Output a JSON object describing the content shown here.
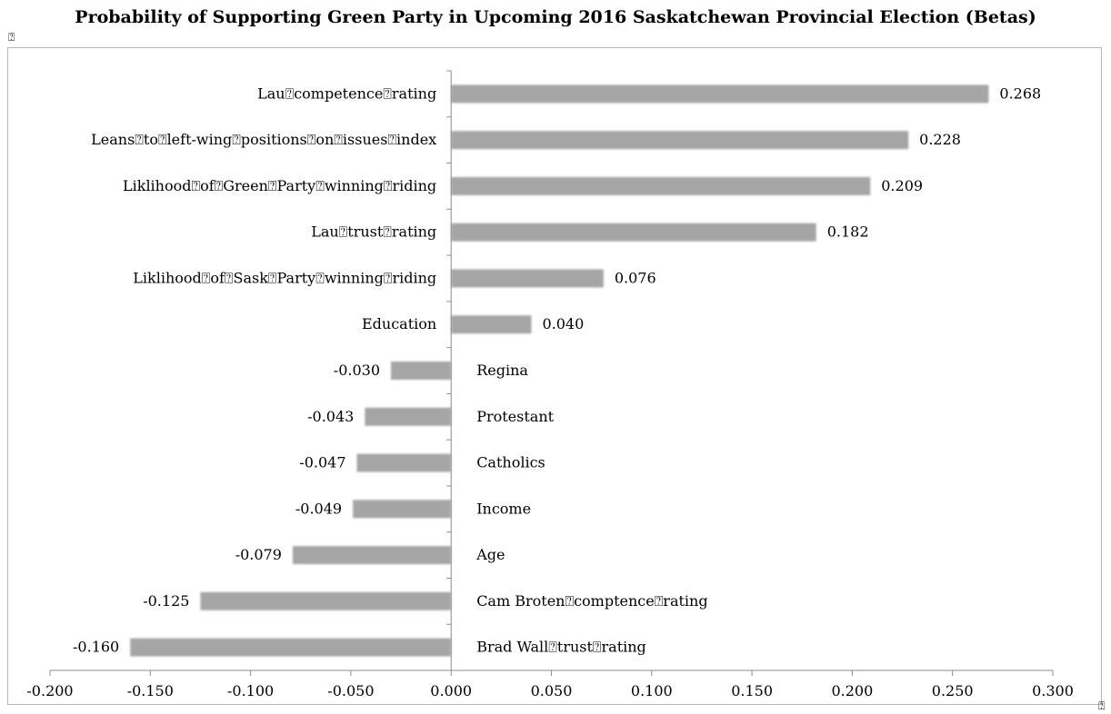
{
  "page": {
    "title_glyph": "⍰",
    "corner_glyph": "⍰"
  },
  "chart_data": {
    "type": "bar",
    "orientation": "horizontal",
    "title": "Probability of Supporting Green Party in Upcoming 2016 Saskatchewan Provincial Election (Betas)",
    "xlabel": "",
    "ylabel": "",
    "xlim": [
      -0.2,
      0.3
    ],
    "x_ticks": [
      "-0.200",
      "-0.150",
      "-0.100",
      "-0.050",
      "0.000",
      "0.050",
      "0.100",
      "0.150",
      "0.200",
      "0.250",
      "0.300"
    ],
    "x_tick_values": [
      -0.2,
      -0.15,
      -0.1,
      -0.05,
      0,
      0.05,
      0.1,
      0.15,
      0.2,
      0.25,
      0.3
    ],
    "grid": false,
    "legend": "none",
    "bar_color": "#a5a5a5",
    "categories": [
      "Lau⍰competence⍰rating",
      "Leans⍰to⍰left-wing⍰positions⍰on⍰issues⍰index",
      "Liklihood⍰of⍰Green⍰Party⍰winning⍰riding",
      "Lau⍰trust⍰rating",
      "Liklihood⍰of⍰Sask⍰Party⍰winning⍰riding",
      "Education",
      "Regina",
      "Protestant",
      "Catholics",
      "Income",
      "Age",
      "Cam Broten⍰comptence⍰rating",
      "Brad Wall⍰trust⍰rating"
    ],
    "values": [
      0.268,
      0.228,
      0.209,
      0.182,
      0.076,
      0.04,
      -0.03,
      -0.043,
      -0.047,
      -0.049,
      -0.079,
      -0.125,
      -0.16
    ],
    "value_labels": [
      "0.268",
      "0.228",
      "0.209",
      "0.182",
      "0.076",
      "0.040",
      "-0.030",
      "-0.043",
      "-0.047",
      "-0.049",
      "-0.079",
      "-0.125",
      "-0.160"
    ]
  }
}
